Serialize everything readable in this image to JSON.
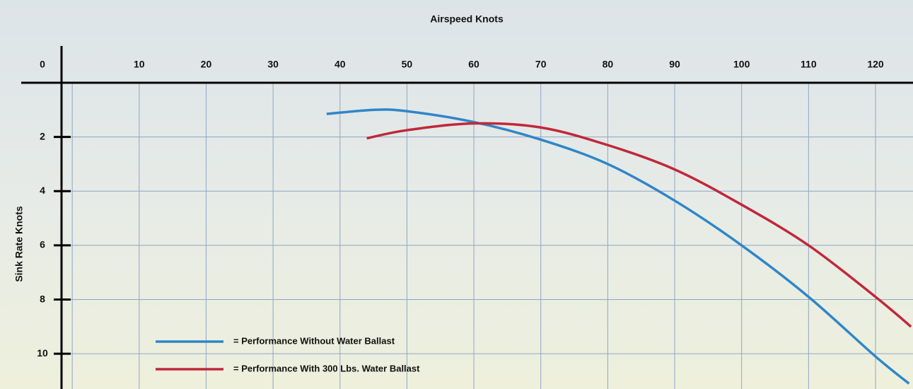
{
  "chart_data": {
    "type": "line",
    "x_label": "Airspeed Knots",
    "y_label": "Sink Rate Knots",
    "xlim": [
      -1.6,
      125.6
    ],
    "ylim": [
      0,
      11.3
    ],
    "y_inverted": true,
    "x_axis_position": "top",
    "xticks": [
      0,
      10,
      20,
      30,
      40,
      50,
      60,
      70,
      80,
      90,
      100,
      110,
      120
    ],
    "yticks": [
      2,
      4,
      6,
      8,
      10
    ],
    "grid": true,
    "series": [
      {
        "name": "= Performance Without Water Ballast",
        "color": "#2f86c8",
        "x": [
          38,
          45,
          50,
          60,
          70,
          80,
          90,
          100,
          110,
          120,
          125
        ],
        "values": [
          1.15,
          1.0,
          1.05,
          1.45,
          2.1,
          3.0,
          4.35,
          6.0,
          7.9,
          10.1,
          11.1
        ]
      },
      {
        "name": "= Performance With 300 Lbs. Water Ballast",
        "color": "#c0283a",
        "x": [
          44,
          50,
          60,
          70,
          80,
          90,
          100,
          110,
          120,
          125.3
        ],
        "values": [
          2.05,
          1.75,
          1.5,
          1.65,
          2.3,
          3.2,
          4.5,
          6.0,
          7.9,
          9.0
        ]
      }
    ]
  }
}
